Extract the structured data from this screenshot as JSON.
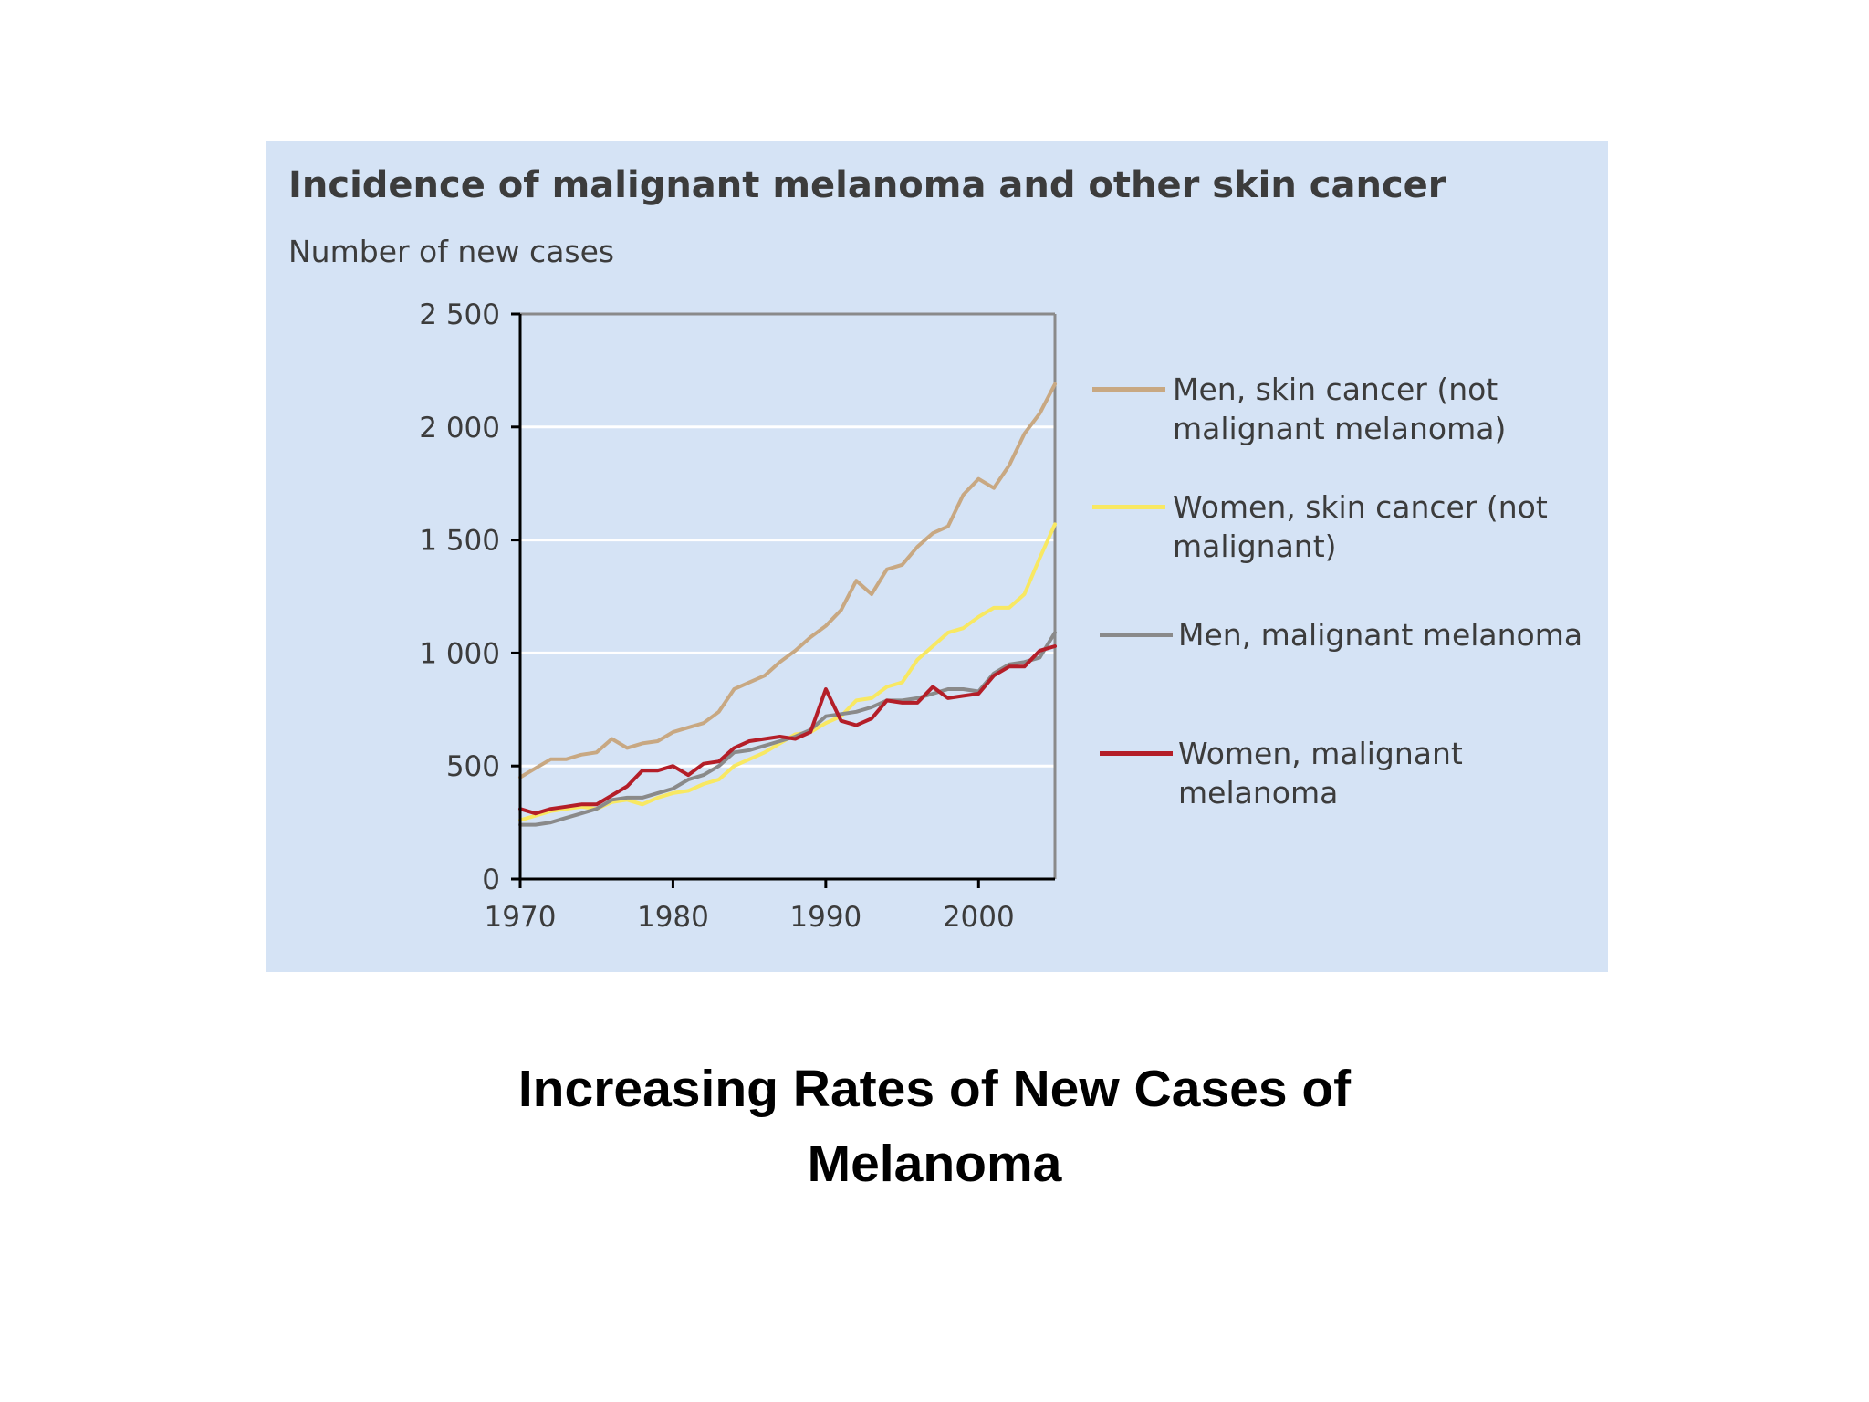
{
  "caption": {
    "line1": "Increasing Rates of New Cases of",
    "line2": "Melanoma"
  },
  "chart_data": {
    "type": "line",
    "title": "Incidence of malignant melanoma and other skin cancer",
    "ylabel": "Number of new cases",
    "xlabel": "",
    "xlim": [
      1970,
      2005
    ],
    "ylim": [
      0,
      2500
    ],
    "x_ticks": [
      1970,
      1980,
      1990,
      2000
    ],
    "y_ticks": [
      0,
      500,
      1000,
      1500,
      2000,
      2500
    ],
    "y_tick_labels": [
      "0",
      "500",
      "1 000",
      "1 500",
      "2 000",
      "2 500"
    ],
    "grid": true,
    "legend_position": "right",
    "x": [
      1970,
      1971,
      1972,
      1973,
      1974,
      1975,
      1976,
      1977,
      1978,
      1979,
      1980,
      1981,
      1982,
      1983,
      1984,
      1985,
      1986,
      1987,
      1988,
      1989,
      1990,
      1991,
      1992,
      1993,
      1994,
      1995,
      1996,
      1997,
      1998,
      1999,
      2000,
      2001,
      2002,
      2003,
      2004,
      2005
    ],
    "series": [
      {
        "name": "Men, skin cancer (not malignant melanoma)",
        "color": "#c8a882",
        "values": [
          450,
          490,
          530,
          530,
          550,
          560,
          620,
          580,
          600,
          610,
          650,
          670,
          690,
          740,
          840,
          870,
          900,
          960,
          1010,
          1070,
          1120,
          1190,
          1320,
          1260,
          1370,
          1390,
          1470,
          1530,
          1560,
          1700,
          1770,
          1730,
          1830,
          1970,
          2060,
          2190
        ]
      },
      {
        "name": "Women, skin cancer (not malignant)",
        "color": "#f8e862",
        "values": [
          260,
          280,
          300,
          310,
          320,
          310,
          340,
          350,
          330,
          360,
          380,
          390,
          420,
          440,
          500,
          530,
          560,
          600,
          640,
          650,
          690,
          720,
          790,
          800,
          850,
          870,
          970,
          1030,
          1090,
          1110,
          1160,
          1200,
          1200,
          1260,
          1420,
          1570
        ]
      },
      {
        "name": "Men, malignant melanoma",
        "color": "#8a8a8a",
        "values": [
          240,
          240,
          250,
          270,
          290,
          310,
          350,
          360,
          360,
          380,
          400,
          440,
          460,
          500,
          560,
          570,
          590,
          610,
          630,
          660,
          720,
          730,
          740,
          760,
          790,
          790,
          800,
          820,
          840,
          840,
          830,
          910,
          950,
          960,
          980,
          1090
        ]
      },
      {
        "name": "Women, malignant melanoma",
        "color": "#b41e28",
        "values": [
          310,
          290,
          310,
          320,
          330,
          330,
          370,
          410,
          480,
          480,
          500,
          460,
          510,
          520,
          580,
          610,
          620,
          630,
          620,
          650,
          840,
          700,
          680,
          710,
          790,
          780,
          780,
          850,
          800,
          810,
          820,
          900,
          940,
          940,
          1010,
          1030
        ]
      }
    ]
  }
}
